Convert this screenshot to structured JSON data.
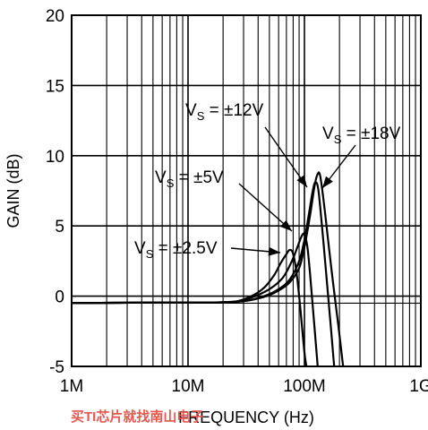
{
  "chart_data": {
    "type": "line",
    "xlabel": "FREQUENCY (Hz)",
    "ylabel": "GAIN (dB)",
    "x_scale": "log",
    "xlim": [
      1000000,
      1000000000
    ],
    "ylim": [
      -5,
      20
    ],
    "grid": true,
    "x_ticks": [
      {
        "value": 1000000,
        "label": "1M"
      },
      {
        "value": 10000000,
        "label": "10M"
      },
      {
        "value": 100000000,
        "label": "100M"
      },
      {
        "value": 1000000000,
        "label": "1G"
      }
    ],
    "y_ticks": [
      {
        "value": -5,
        "label": "-5"
      },
      {
        "value": 0,
        "label": "0"
      },
      {
        "value": 5,
        "label": "5"
      },
      {
        "value": 10,
        "label": "10"
      },
      {
        "value": 15,
        "label": "15"
      },
      {
        "value": 20,
        "label": "20"
      }
    ],
    "series": [
      {
        "name": "VS = ±2.5V",
        "label_main": "V",
        "label_sub": "S",
        "label_rest": " = ±2.5V",
        "x": [
          1000000,
          5000000,
          15000000,
          25000000,
          35000000,
          45000000,
          55000000,
          62000000,
          70000000,
          75000000,
          80000000,
          86000000,
          92000000,
          100000000,
          104000000
        ],
        "y": [
          -0.5,
          -0.45,
          -0.45,
          -0.4,
          0.0,
          0.6,
          1.5,
          2.3,
          3.0,
          3.3,
          3.0,
          1.5,
          -0.8,
          -4.0,
          -5.0
        ]
      },
      {
        "name": "VS = ±5V",
        "label_main": "V",
        "label_sub": "S",
        "label_rest": " = ±5V",
        "x": [
          1000000,
          5000000,
          15000000,
          25000000,
          35000000,
          50000000,
          65000000,
          78000000,
          88000000,
          95000000,
          100000000,
          106000000,
          112000000,
          120000000,
          130000000
        ],
        "y": [
          -0.5,
          -0.45,
          -0.45,
          -0.4,
          -0.1,
          0.5,
          1.3,
          2.5,
          3.6,
          4.3,
          4.4,
          3.5,
          1.5,
          -1.5,
          -5.0
        ]
      },
      {
        "name": "VS = ±12V",
        "label_main": "V",
        "label_sub": "S",
        "label_rest": " = ±12V",
        "x": [
          1000000,
          5000000,
          15000000,
          30000000,
          45000000,
          60000000,
          75000000,
          90000000,
          100000000,
          110000000,
          118000000,
          124000000,
          132000000,
          145000000,
          160000000,
          180000000
        ],
        "y": [
          -0.5,
          -0.45,
          -0.45,
          -0.35,
          0.0,
          0.5,
          1.2,
          2.5,
          4.0,
          6.0,
          7.5,
          8.1,
          7.5,
          4.0,
          0.0,
          -5.0
        ]
      },
      {
        "name": "VS = ±18V",
        "label_main": "V",
        "label_sub": "S",
        "label_rest": " = ±18V",
        "x": [
          1000000,
          5000000,
          15000000,
          30000000,
          45000000,
          60000000,
          75000000,
          90000000,
          100000000,
          112000000,
          122000000,
          130000000,
          137000000,
          150000000,
          170000000,
          195000000,
          215000000
        ],
        "y": [
          -0.5,
          -0.45,
          -0.45,
          -0.35,
          -0.05,
          0.4,
          1.0,
          2.0,
          3.5,
          5.8,
          7.8,
          8.7,
          8.5,
          6.0,
          2.0,
          -2.0,
          -5.0
        ]
      }
    ],
    "watermark": "买TI芯片就找南山电子"
  }
}
